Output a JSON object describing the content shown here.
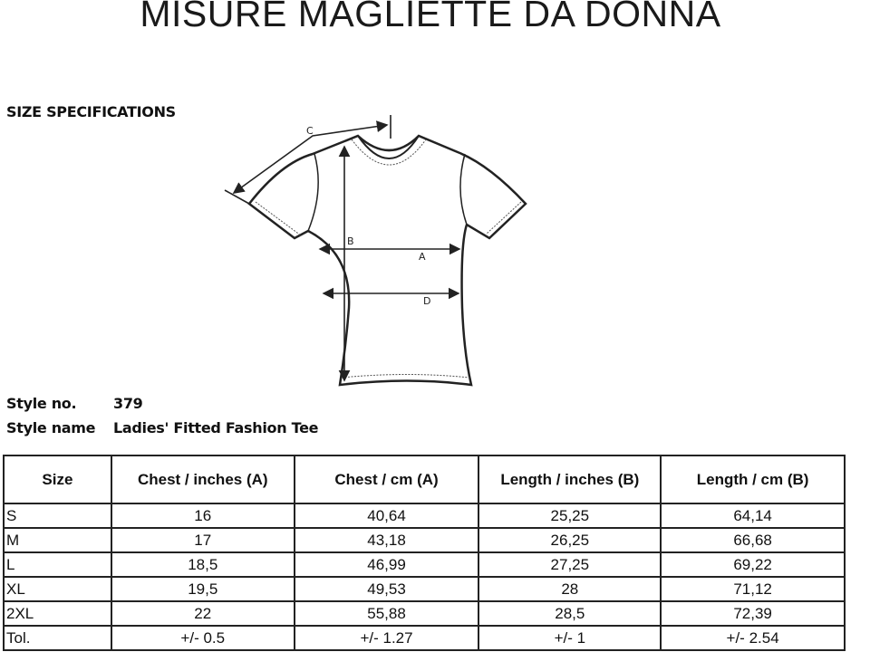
{
  "title": "MISURE MAGLIETTE DA DONNA",
  "section": "SIZE SPECIFICATIONS",
  "diagram": {
    "labels": [
      "A",
      "B",
      "C",
      "D"
    ]
  },
  "style": {
    "no_label": "Style no.",
    "no_value": "379",
    "name_label": "Style name",
    "name_value": "Ladies' Fitted Fashion Tee"
  },
  "table": {
    "headers": [
      "Size",
      "Chest / inches (A)",
      "Chest / cm (A)",
      "Length / inches (B)",
      "Length / cm (B)"
    ],
    "rows": [
      [
        "S",
        "16",
        "40,64",
        "25,25",
        "64,14"
      ],
      [
        "M",
        "17",
        "43,18",
        "26,25",
        "66,68"
      ],
      [
        "L",
        "18,5",
        "46,99",
        "27,25",
        "69,22"
      ],
      [
        "XL",
        "19,5",
        "49,53",
        "28",
        "71,12"
      ],
      [
        "2XL",
        "22",
        "55,88",
        "28,5",
        "72,39"
      ],
      [
        "Tol.",
        "+/- 0.5",
        "+/- 1.27",
        "+/- 1",
        "+/- 2.54"
      ]
    ]
  }
}
